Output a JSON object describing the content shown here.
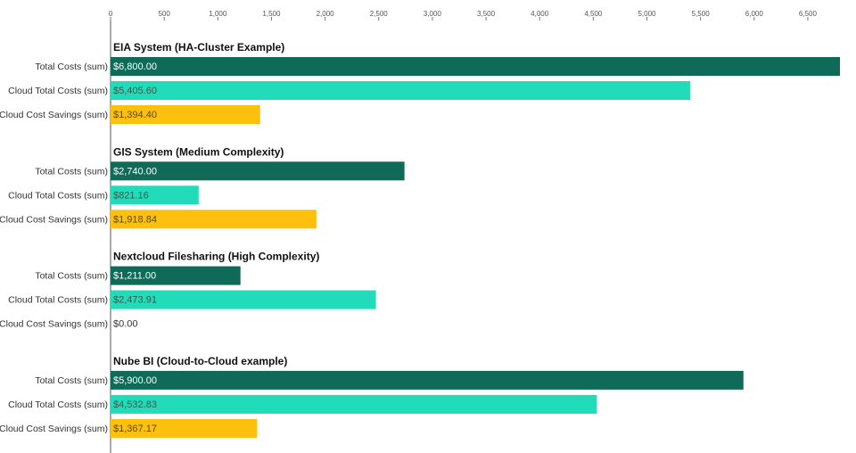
{
  "chart_data": {
    "type": "bar",
    "orientation": "horizontal",
    "xlim": [
      0,
      6800
    ],
    "ticks": [
      0,
      500,
      1000,
      1500,
      2000,
      2500,
      3000,
      3500,
      4000,
      4500,
      5000,
      5500,
      6000,
      6500
    ],
    "tick_labels": [
      "0",
      "500",
      "1,000",
      "1,500",
      "2,000",
      "2,500",
      "3,000",
      "3,500",
      "4,000",
      "4,500",
      "5,000",
      "5,500",
      "6,000",
      "6,500"
    ],
    "series": [
      {
        "name": "Total Costs (sum)",
        "color": "#0f6b57",
        "label_color": "#ffffff"
      },
      {
        "name": "Cloud Total Costs (sum)",
        "color": "#22dbb8",
        "label_color": "#3d5a50"
      },
      {
        "name": "Cloud Cost Savings (sum)",
        "color": "#fdc00f",
        "label_color": "#5a4a10"
      }
    ],
    "groups": [
      {
        "title": "EIA System (HA-Cluster Example)",
        "values": [
          6800.0,
          5405.6,
          1394.4
        ],
        "labels": [
          "$6,800.00",
          "$5,405.60",
          "$1,394.40"
        ]
      },
      {
        "title": "GIS System (Medium Complexity)",
        "values": [
          2740.0,
          821.16,
          1918.84
        ],
        "labels": [
          "$2,740.00",
          "$821.16",
          "$1,918.84"
        ]
      },
      {
        "title": "Nextcloud Filesharing (High Complexity)",
        "values": [
          1211.0,
          2473.91,
          0.0
        ],
        "labels": [
          "$1,211.00",
          "$2,473.91",
          "$0.00"
        ]
      },
      {
        "title": "Nube BI (Cloud-to-Cloud example)",
        "values": [
          5900.0,
          4532.83,
          1367.17
        ],
        "labels": [
          "$5,900.00",
          "$4,532.83",
          "$1,367.17"
        ]
      }
    ]
  }
}
